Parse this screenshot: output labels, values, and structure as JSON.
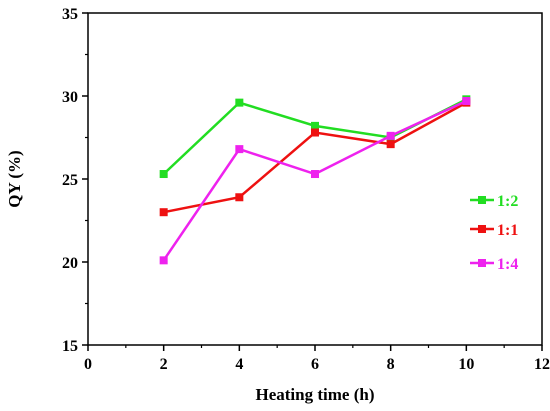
{
  "chart_data": {
    "type": "line",
    "xlabel": "Heating time (h)",
    "ylabel": "QY (%)",
    "xlim": [
      0,
      12
    ],
    "ylim": [
      15,
      35
    ],
    "xticks": [
      0,
      2,
      4,
      6,
      8,
      10,
      12
    ],
    "yticks": [
      15,
      20,
      25,
      30,
      35
    ],
    "grid": false,
    "legend_position": "right",
    "x": [
      2,
      4,
      6,
      8,
      10
    ],
    "series": [
      {
        "name": "1:2",
        "color": "#22dd22",
        "values": [
          25.3,
          29.6,
          28.2,
          27.5,
          29.8
        ]
      },
      {
        "name": "1:1",
        "color": "#ee1111",
        "values": [
          23.0,
          23.9,
          27.8,
          27.1,
          29.6
        ]
      },
      {
        "name": "1:4",
        "color": "#ee22ee",
        "values": [
          20.1,
          26.8,
          25.3,
          27.6,
          29.7
        ]
      }
    ]
  }
}
